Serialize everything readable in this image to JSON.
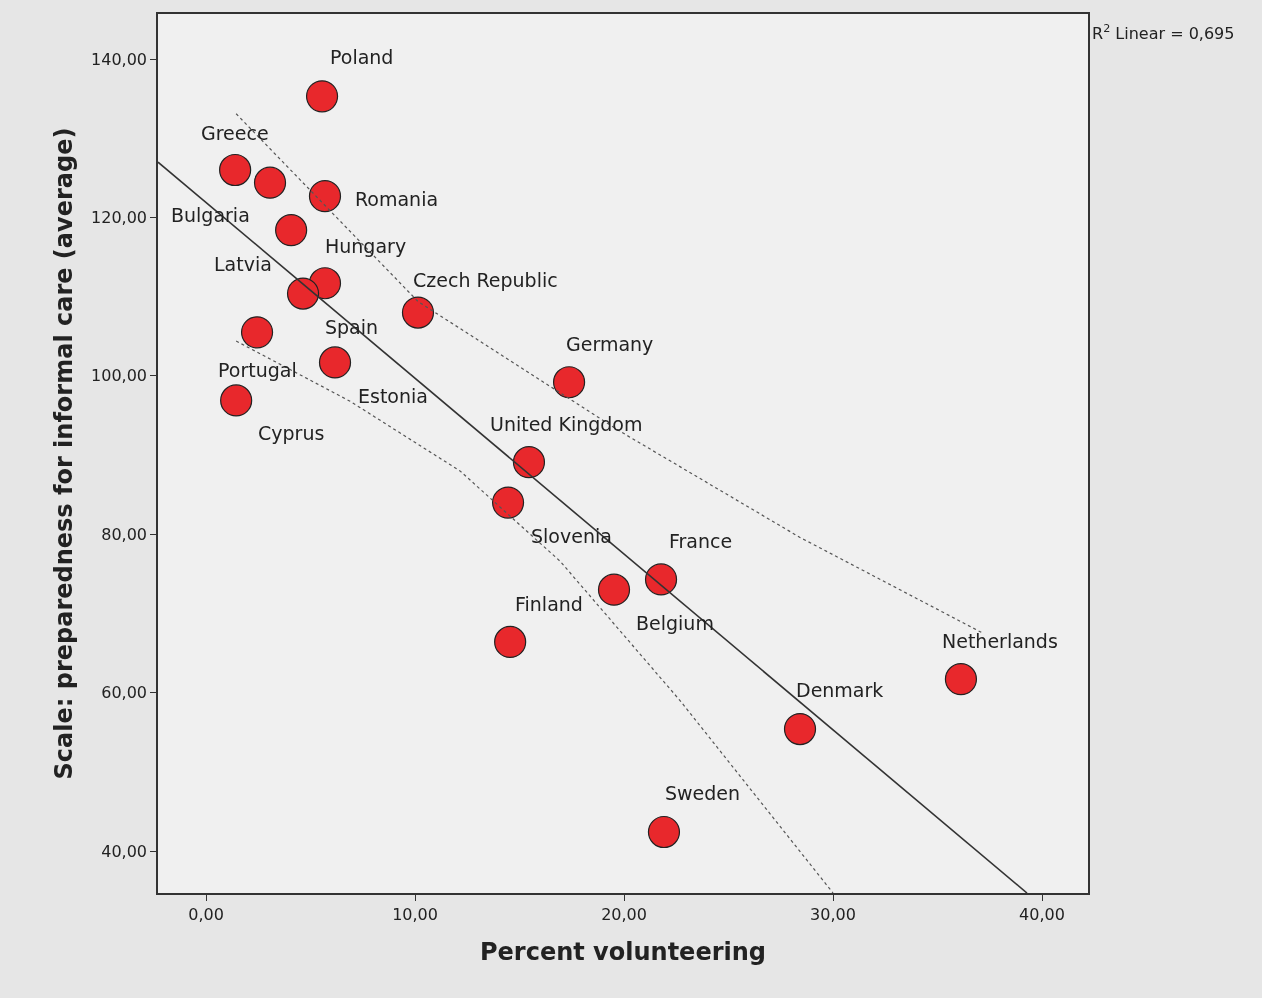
{
  "chart_data": {
    "type": "scatter",
    "xlabel": "Percent volunteering",
    "ylabel": "Scale: preparedness for informal care (average)",
    "xlim": [
      -2.3,
      42.2
    ],
    "ylim": [
      34.7,
      145.7
    ],
    "xticks": [
      {
        "value": 0,
        "label": "0,00"
      },
      {
        "value": 10,
        "label": "10,00"
      },
      {
        "value": 20,
        "label": "20,00"
      },
      {
        "value": 30,
        "label": "30,00"
      },
      {
        "value": 40,
        "label": "40,00"
      }
    ],
    "yticks": [
      {
        "value": 40,
        "label": "40,00"
      },
      {
        "value": 60,
        "label": "60,00"
      },
      {
        "value": 80,
        "label": "80,00"
      },
      {
        "value": 100,
        "label": "100,00"
      },
      {
        "value": 120,
        "label": "120,00"
      },
      {
        "value": 140,
        "label": "140,00"
      }
    ],
    "grid": false,
    "marker": "circle",
    "series": [
      {
        "color": "#e8282c",
        "x": [
          5.55,
          1.39,
          3.06,
          5.69,
          4.07,
          5.69,
          4.64,
          10.14,
          2.44,
          6.17,
          17.37,
          1.44,
          15.45,
          14.45,
          21.77,
          19.52,
          14.55,
          36.12,
          28.42,
          21.91
        ],
        "values": [
          135.3,
          126.0,
          124.4,
          122.7,
          118.4,
          111.7,
          110.4,
          108.0,
          105.5,
          101.7,
          99.2,
          96.9,
          89.1,
          84.0,
          74.3,
          73.0,
          66.4,
          61.7,
          55.4,
          42.4
        ]
      },
      {
        "type": "line",
        "color": "#333333",
        "line_style": "solid",
        "marker": "none",
        "x": [
          -2.3,
          39.28
        ],
        "values": [
          127.0,
          34.7
        ]
      },
      {
        "type": "line",
        "color": "#555555",
        "line_style": "dotted",
        "marker": "none",
        "x": [
          1.44,
          10.14,
          19.81,
          28.42,
          37.18
        ],
        "values": [
          133.1,
          109.4,
          93.0,
          79.6,
          67.5
        ]
      },
      {
        "type": "line",
        "color": "#555555",
        "line_style": "dotted",
        "marker": "none",
        "x": [
          1.44,
          6.89,
          12.15,
          16.94,
          22.68,
          30.0
        ],
        "values": [
          104.4,
          96.8,
          88.0,
          76.6,
          59.0,
          34.7
        ]
      }
    ],
    "annotations": [
      {
        "text": "Poland",
        "x": 5.55,
        "y": 135.3
      },
      {
        "text": "Greece",
        "x": 1.39,
        "y": 126.0
      },
      {
        "text": "Bulgaria",
        "x": 3.06,
        "y": 124.4
      },
      {
        "text": "Romania",
        "x": 5.69,
        "y": 122.7
      },
      {
        "text": "Hungary",
        "x": 4.07,
        "y": 118.4
      },
      {
        "text": "Spain",
        "x": 5.69,
        "y": 111.7
      },
      {
        "text": "Latvia",
        "x": 4.64,
        "y": 110.4
      },
      {
        "text": "Czech Republic",
        "x": 10.14,
        "y": 108.0
      },
      {
        "text": "Portugal",
        "x": 2.44,
        "y": 105.5
      },
      {
        "text": "Estonia",
        "x": 6.17,
        "y": 101.7
      },
      {
        "text": "Germany",
        "x": 17.37,
        "y": 99.2
      },
      {
        "text": "Cyprus",
        "x": 1.44,
        "y": 96.9
      },
      {
        "text": "United Kingdom",
        "x": 15.45,
        "y": 89.1
      },
      {
        "text": "Slovenia",
        "x": 14.45,
        "y": 84.0
      },
      {
        "text": "France",
        "x": 21.77,
        "y": 74.3
      },
      {
        "text": "Belgium",
        "x": 19.52,
        "y": 73.0
      },
      {
        "text": "Finland",
        "x": 14.55,
        "y": 66.4
      },
      {
        "text": "Netherlands",
        "x": 36.12,
        "y": 61.7
      },
      {
        "text": "Denmark",
        "x": 28.42,
        "y": 55.4
      },
      {
        "text": "Sweden",
        "x": 21.91,
        "y": 42.4
      },
      "R$^{2}$ Linear = 0,695"
    ]
  }
}
